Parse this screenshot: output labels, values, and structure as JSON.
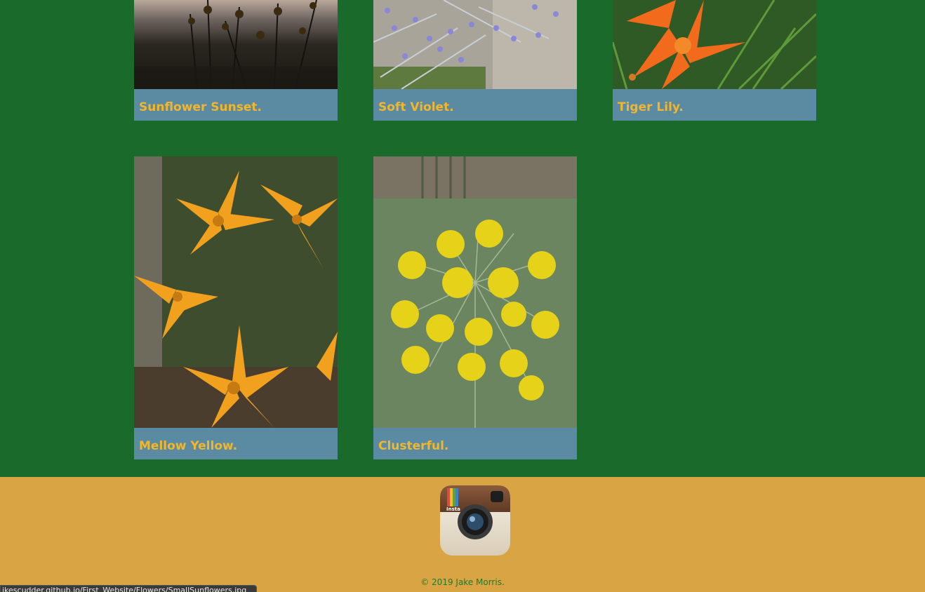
{
  "gallery": {
    "items": [
      {
        "caption": "Sunflower Sunset."
      },
      {
        "caption": "Soft Violet."
      },
      {
        "caption": "Tiger Lily."
      },
      {
        "caption": "Mellow Yellow."
      },
      {
        "caption": "Clusterful."
      }
    ]
  },
  "footer": {
    "social_icon": "instagram-icon",
    "copyright": "© 2019 Jake Morris."
  },
  "status_bar": {
    "url": "jkescudder.github.io/First_Website/Flowers/SmallSunflowers.jpg"
  },
  "colors": {
    "page_bg": "#1a6a2b",
    "caption_bg": "#5b8aa3",
    "caption_text": "#f2b62b",
    "footer_bg": "#d9a444",
    "footer_text": "#1e7a2b"
  }
}
